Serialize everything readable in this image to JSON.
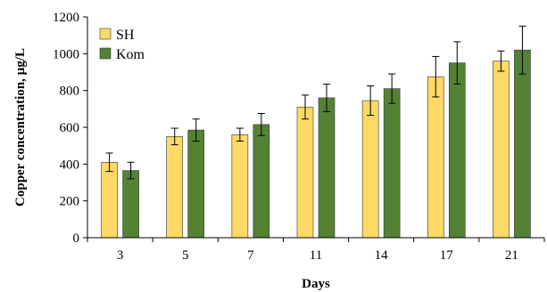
{
  "chart_data": {
    "type": "bar",
    "title": "",
    "xlabel": "Days",
    "ylabel": "Copper concentration,  µg/L",
    "categories": [
      "3",
      "5",
      "7",
      "11",
      "14",
      "17",
      "21"
    ],
    "ylim": [
      0,
      1200
    ],
    "yticks": [
      0,
      200,
      400,
      600,
      800,
      1000,
      1200
    ],
    "grid": false,
    "legend_position": "top-left",
    "series": [
      {
        "name": "SH",
        "color": "#FFD966",
        "values": [
          410,
          550,
          560,
          710,
          745,
          875,
          960
        ],
        "errors": [
          50,
          45,
          35,
          65,
          80,
          110,
          55
        ]
      },
      {
        "name": "Kom",
        "color": "#548235",
        "values": [
          365,
          585,
          615,
          760,
          810,
          950,
          1020
        ],
        "errors": [
          45,
          60,
          60,
          75,
          80,
          115,
          130
        ]
      }
    ]
  }
}
